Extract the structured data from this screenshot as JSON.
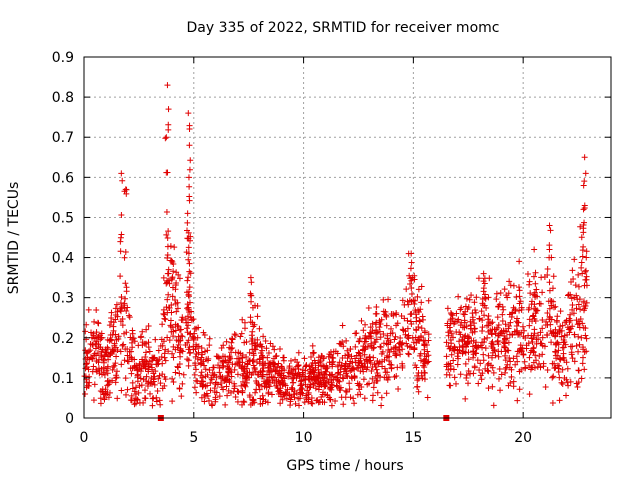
{
  "chart_data": {
    "type": "scatter",
    "title": "Day 335 of 2022, SRMTID for receiver momc",
    "xlabel": "GPS time / hours",
    "ylabel": "SRMTID / TECUs",
    "xlim": [
      0,
      24
    ],
    "ylim": [
      0,
      0.9
    ],
    "xticks": [
      0,
      5,
      10,
      15,
      20
    ],
    "xtick_labels": [
      "0",
      "5",
      "10",
      "15",
      "20"
    ],
    "yticks": [
      0,
      0.1,
      0.2,
      0.3,
      0.4,
      0.5,
      0.6,
      0.7,
      0.8,
      0.9
    ],
    "ytick_labels": [
      "0",
      "0.1",
      "0.2",
      "0.3",
      "0.4",
      "0.5",
      "0.6",
      "0.7",
      "0.8",
      "0.9"
    ],
    "grid": true,
    "marker": "+",
    "color": "#e00000",
    "data_gap_markers": [
      3.5,
      16.5
    ],
    "envelope": {
      "description_hours": [
        0,
        0.5,
        1.0,
        1.5,
        1.8,
        2.0,
        2.3,
        2.6,
        3.0,
        3.3,
        3.7,
        3.9,
        4.2,
        4.5,
        4.8,
        5.0,
        5.3,
        5.7,
        6.0,
        6.5,
        7.0,
        7.5,
        7.8,
        8.0,
        8.5,
        9.0,
        9.5,
        10.0,
        10.5,
        11.0,
        11.5,
        12.0,
        12.5,
        13.0,
        13.5,
        14.0,
        14.5,
        14.8,
        15.0,
        15.3,
        15.7,
        16.0,
        16.5,
        17.0,
        17.5,
        18.0,
        18.5,
        19.0,
        19.5,
        20.0,
        20.5,
        21.0,
        21.3,
        21.6,
        22.0,
        22.3,
        22.6,
        22.9
      ],
      "typical": [
        0.16,
        0.15,
        0.12,
        0.2,
        0.28,
        0.22,
        0.09,
        0.14,
        0.12,
        0.11,
        0.22,
        0.26,
        0.22,
        0.17,
        0.25,
        0.18,
        0.12,
        0.1,
        0.1,
        0.12,
        0.12,
        0.14,
        0.16,
        0.13,
        0.12,
        0.1,
        0.09,
        0.09,
        0.1,
        0.1,
        0.12,
        0.13,
        0.14,
        0.16,
        0.17,
        0.18,
        0.2,
        0.24,
        0.25,
        0.2,
        0.15,
        null,
        0.18,
        0.19,
        0.2,
        0.2,
        0.2,
        0.21,
        0.22,
        0.21,
        0.22,
        0.24,
        0.23,
        0.16,
        0.18,
        0.22,
        0.24,
        0.25
      ],
      "spread": [
        0.05,
        0.05,
        0.05,
        0.06,
        0.12,
        0.1,
        0.04,
        0.05,
        0.05,
        0.05,
        0.08,
        0.1,
        0.08,
        0.07,
        0.1,
        0.07,
        0.04,
        0.04,
        0.04,
        0.04,
        0.05,
        0.06,
        0.07,
        0.05,
        0.04,
        0.03,
        0.03,
        0.03,
        0.03,
        0.03,
        0.04,
        0.04,
        0.04,
        0.05,
        0.06,
        0.06,
        0.06,
        0.08,
        0.09,
        0.07,
        0.05,
        null,
        0.05,
        0.06,
        0.06,
        0.07,
        0.07,
        0.07,
        0.07,
        0.07,
        0.07,
        0.08,
        0.09,
        0.06,
        0.07,
        0.08,
        0.09,
        0.1
      ]
    },
    "peaks": [
      {
        "x": 1.7,
        "y": 0.61
      },
      {
        "x": 1.9,
        "y": 0.57
      },
      {
        "x": 3.8,
        "y": 0.83
      },
      {
        "x": 3.85,
        "y": 0.77
      },
      {
        "x": 3.75,
        "y": 0.7
      },
      {
        "x": 4.75,
        "y": 0.76
      },
      {
        "x": 4.8,
        "y": 0.68
      },
      {
        "x": 4.78,
        "y": 0.6
      },
      {
        "x": 4.72,
        "y": 0.51
      },
      {
        "x": 7.6,
        "y": 0.35
      },
      {
        "x": 14.9,
        "y": 0.41
      },
      {
        "x": 18.2,
        "y": 0.36
      },
      {
        "x": 20.5,
        "y": 0.42
      },
      {
        "x": 21.2,
        "y": 0.48
      },
      {
        "x": 22.8,
        "y": 0.65
      },
      {
        "x": 22.85,
        "y": 0.61
      },
      {
        "x": 22.75,
        "y": 0.52
      }
    ]
  }
}
